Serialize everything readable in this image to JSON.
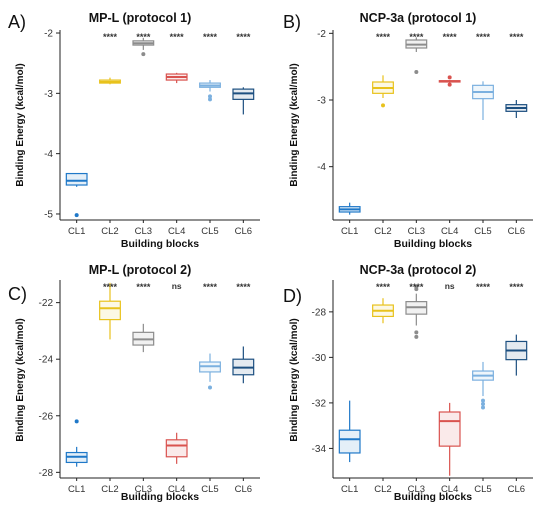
{
  "chart_data": [
    {
      "type": "boxplot",
      "panel_label": "A)",
      "title": "MP-L (protocol 1)",
      "xlabel": "Building blocks",
      "ylabel": "Binding Energy (kcal/mol)",
      "ylim": [
        -5.1,
        -1.95
      ],
      "yticks": [
        -2,
        -3,
        -4,
        -5
      ],
      "categories": [
        "CL1",
        "CL2",
        "CL3",
        "CL4",
        "CL5",
        "CL6"
      ],
      "colors": [
        "#1f78c8",
        "#e8c21c",
        "#8c8c8c",
        "#d9534f",
        "#7bb0df",
        "#1c4f80"
      ],
      "significance": [
        "",
        "****",
        "****",
        "****",
        "****",
        "****"
      ],
      "boxes": [
        {
          "min": -4.55,
          "q1": -4.52,
          "median": -4.45,
          "q3": -4.33,
          "max": -4.33,
          "outliers": [
            -5.02
          ]
        },
        {
          "min": -2.85,
          "q1": -2.83,
          "median": -2.81,
          "q3": -2.78,
          "max": -2.74,
          "outliers": []
        },
        {
          "min": -2.28,
          "q1": -2.2,
          "median": -2.17,
          "q3": -2.13,
          "max": -2.08,
          "outliers": [
            -2.35
          ]
        },
        {
          "min": -2.83,
          "q1": -2.78,
          "median": -2.73,
          "q3": -2.68,
          "max": -2.66,
          "outliers": []
        },
        {
          "min": -2.97,
          "q1": -2.9,
          "median": -2.87,
          "q3": -2.83,
          "max": -2.78,
          "outliers": [
            -3.05,
            -3.1
          ]
        },
        {
          "min": -3.35,
          "q1": -3.1,
          "median": -3.0,
          "q3": -2.93,
          "max": -2.9,
          "outliers": []
        }
      ]
    },
    {
      "type": "boxplot",
      "panel_label": "B)",
      "title": "NCP-3a (protocol 1)",
      "xlabel": "Building blocks",
      "ylabel": "Binding Energy (kcal/mol)",
      "ylim": [
        -4.8,
        -1.95
      ],
      "yticks": [
        -2,
        -3,
        -4
      ],
      "categories": [
        "CL1",
        "CL2",
        "CL3",
        "CL4",
        "CL5",
        "CL6"
      ],
      "colors": [
        "#1f78c8",
        "#e8c21c",
        "#8c8c8c",
        "#d9534f",
        "#7bb0df",
        "#1c4f80"
      ],
      "significance": [
        "",
        "****",
        "****",
        "****",
        "****",
        "****"
      ],
      "boxes": [
        {
          "min": -4.72,
          "q1": -4.68,
          "median": -4.64,
          "q3": -4.6,
          "max": -4.54,
          "outliers": []
        },
        {
          "min": -2.97,
          "q1": -2.9,
          "median": -2.82,
          "q3": -2.73,
          "max": -2.63,
          "outliers": [
            -3.08
          ]
        },
        {
          "min": -2.28,
          "q1": -2.22,
          "median": -2.17,
          "q3": -2.1,
          "max": -2.06,
          "outliers": [
            -2.58
          ]
        },
        {
          "min": -2.75,
          "q1": -2.73,
          "median": -2.72,
          "q3": -2.71,
          "max": -2.7,
          "outliers": [
            -2.66,
            -2.77
          ]
        },
        {
          "min": -3.3,
          "q1": -2.98,
          "median": -2.88,
          "q3": -2.78,
          "max": -2.72,
          "outliers": []
        },
        {
          "min": -3.27,
          "q1": -3.17,
          "median": -3.12,
          "q3": -3.07,
          "max": -3.0,
          "outliers": []
        }
      ]
    },
    {
      "type": "boxplot",
      "panel_label": "C)",
      "title": "MP-L (protocol 2)",
      "xlabel": "Building blocks",
      "ylabel": "Binding Energy (kcal/mol)",
      "ylim": [
        -28.2,
        -21.2
      ],
      "yticks": [
        -22,
        -24,
        -26,
        -28
      ],
      "categories": [
        "CL1",
        "CL2",
        "CL3",
        "CL4",
        "CL5",
        "CL6"
      ],
      "colors": [
        "#1f78c8",
        "#e8c21c",
        "#8c8c8c",
        "#d9534f",
        "#7bb0df",
        "#1c4f80"
      ],
      "significance": [
        "",
        "****",
        "****",
        "ns",
        "****",
        "****"
      ],
      "boxes": [
        {
          "min": -27.8,
          "q1": -27.65,
          "median": -27.45,
          "q3": -27.3,
          "max": -27.1,
          "outliers": [
            -26.2
          ]
        },
        {
          "min": -23.3,
          "q1": -22.6,
          "median": -22.2,
          "q3": -21.95,
          "max": -21.3,
          "outliers": []
        },
        {
          "min": -23.75,
          "q1": -23.5,
          "median": -23.3,
          "q3": -23.05,
          "max": -22.75,
          "outliers": []
        },
        {
          "min": -27.7,
          "q1": -27.45,
          "median": -27.05,
          "q3": -26.85,
          "max": -26.6,
          "outliers": []
        },
        {
          "min": -24.8,
          "q1": -24.45,
          "median": -24.25,
          "q3": -24.1,
          "max": -23.8,
          "outliers": [
            -25.0
          ]
        },
        {
          "min": -24.85,
          "q1": -24.55,
          "median": -24.3,
          "q3": -24.0,
          "max": -23.55,
          "outliers": []
        }
      ]
    },
    {
      "type": "boxplot",
      "panel_label": "D)",
      "title": "NCP-3a (protocol 2)",
      "xlabel": "Building blocks",
      "ylabel": "Binding Energy (kcal/mol)",
      "ylim": [
        -35.3,
        -26.6
      ],
      "yticks": [
        -28,
        -30,
        -32,
        -34
      ],
      "categories": [
        "CL1",
        "CL2",
        "CL3",
        "CL4",
        "CL5",
        "CL6"
      ],
      "colors": [
        "#1f78c8",
        "#e8c21c",
        "#8c8c8c",
        "#d9534f",
        "#7bb0df",
        "#1c4f80"
      ],
      "significance": [
        "",
        "****",
        "****",
        "ns",
        "****",
        "****"
      ],
      "boxes": [
        {
          "min": -34.6,
          "q1": -34.2,
          "median": -33.6,
          "q3": -33.2,
          "max": -31.9,
          "outliers": []
        },
        {
          "min": -28.5,
          "q1": -28.2,
          "median": -27.95,
          "q3": -27.7,
          "max": -27.4,
          "outliers": []
        },
        {
          "min": -28.6,
          "q1": -28.1,
          "median": -27.8,
          "q3": -27.55,
          "max": -27.2,
          "outliers": [
            -26.9,
            -27.0,
            -28.9,
            -29.1
          ]
        },
        {
          "min": -35.2,
          "q1": -33.9,
          "median": -32.8,
          "q3": -32.4,
          "max": -32.0,
          "outliers": []
        },
        {
          "min": -31.7,
          "q1": -31.0,
          "median": -30.8,
          "q3": -30.6,
          "max": -30.2,
          "outliers": [
            -31.9,
            -32.05,
            -32.2
          ]
        },
        {
          "min": -30.8,
          "q1": -30.1,
          "median": -29.7,
          "q3": -29.3,
          "max": -29.0,
          "outliers": []
        }
      ]
    }
  ]
}
